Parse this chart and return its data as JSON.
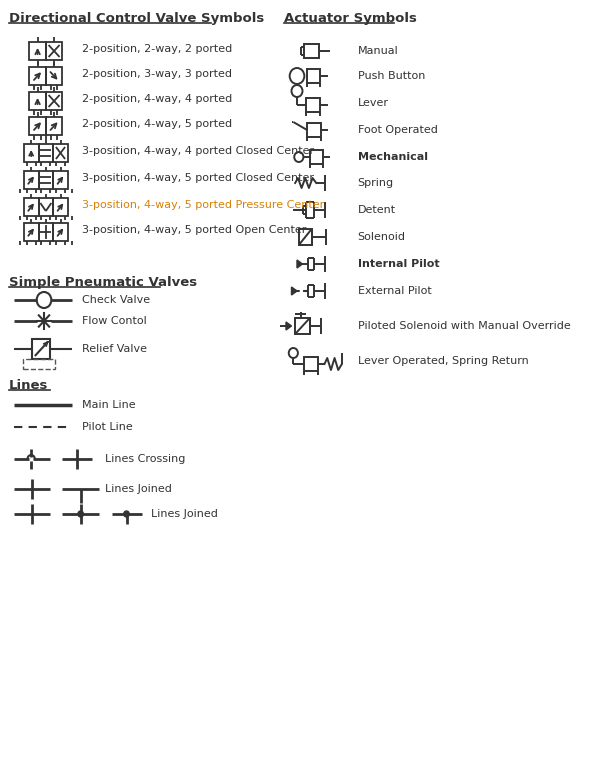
{
  "title_left": "Directional Control Valve Symbols",
  "title_right": "Actuator Symbols",
  "title_left2": "Simple Pneumatic Valves",
  "title_left3": "Lines",
  "title_color": "#d4820a",
  "text_color": "#333333",
  "bg_color": "#ffffff",
  "dcv_items": [
    "2-position, 2-way, 2 ported",
    "2-position, 3-way, 3 ported",
    "2-position, 4-way, 4 ported",
    "2-position, 4-way, 5 ported",
    "3-position, 4-way, 4 ported Closed Center",
    "3-position, 4-way, 5 ported Closed Center",
    "3-position, 4-way, 5 ported Pressure Center",
    "3-position, 4-way, 5 ported Open Center"
  ],
  "dcv_colors": [
    "#333333",
    "#333333",
    "#333333",
    "#333333",
    "#333333",
    "#333333",
    "#d4820a",
    "#333333"
  ],
  "spv_items": [
    "Check Valve",
    "Flow Contol",
    "Relief Valve"
  ],
  "actuator_items": [
    "Manual",
    "Push Button",
    "Lever",
    "Foot Operated",
    "Mechanical",
    "Spring",
    "Detent",
    "Solenoid",
    "Internal Pilot",
    "External Pilot",
    "Piloted Solenoid with Manual Override",
    "Lever Operated, Spring Return"
  ],
  "actuator_bold": [
    false,
    false,
    false,
    false,
    true,
    false,
    false,
    false,
    true,
    false,
    false,
    false
  ],
  "lines_items": [
    "Main Line",
    "Pilot Line",
    "Lines Crossing",
    "Lines Joined",
    "Lines Joined"
  ]
}
